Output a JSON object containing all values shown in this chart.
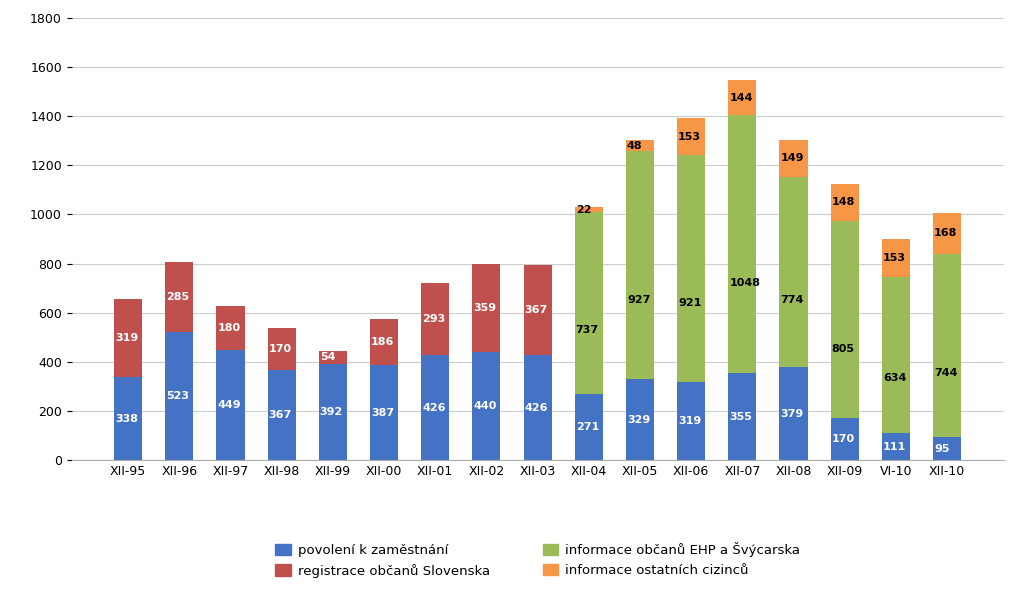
{
  "categories": [
    "XII-95",
    "XII-96",
    "XII-97",
    "XII-98",
    "XII-99",
    "XII-00",
    "XII-01",
    "XII-02",
    "XII-03",
    "XII-04",
    "XII-05",
    "XII-06",
    "XII-07",
    "XII-08",
    "XII-09",
    "VI-10",
    "XII-10"
  ],
  "povoleni": [
    338,
    523,
    449,
    367,
    392,
    387,
    426,
    440,
    426,
    271,
    329,
    319,
    355,
    379,
    170,
    111,
    95
  ],
  "registrace": [
    319,
    285,
    180,
    170,
    54,
    186,
    293,
    359,
    367,
    0,
    0,
    0,
    0,
    0,
    0,
    0,
    0
  ],
  "ehp": [
    0,
    0,
    0,
    0,
    0,
    0,
    0,
    0,
    0,
    737,
    927,
    921,
    1048,
    774,
    805,
    634,
    744
  ],
  "ostatni": [
    0,
    0,
    0,
    0,
    0,
    0,
    0,
    0,
    0,
    22,
    48,
    153,
    144,
    149,
    148,
    153,
    168
  ],
  "color_povoleni": "#4472C4",
  "color_registrace": "#C0504D",
  "color_ehp": "#9BBB59",
  "color_ostatni": "#F79646",
  "ylim": [
    0,
    1800
  ],
  "yticks": [
    0,
    200,
    400,
    600,
    800,
    1000,
    1200,
    1400,
    1600,
    1800
  ],
  "legend_labels": [
    "povolení k zaměstnání",
    "registrace občanů Slovenska",
    "informace občanů EHP a Švýcarska",
    "informace ostatních cizinců"
  ],
  "background_color": "#FFFFFF",
  "bar_width": 0.55,
  "label_fontsize": 8,
  "tick_fontsize": 9
}
